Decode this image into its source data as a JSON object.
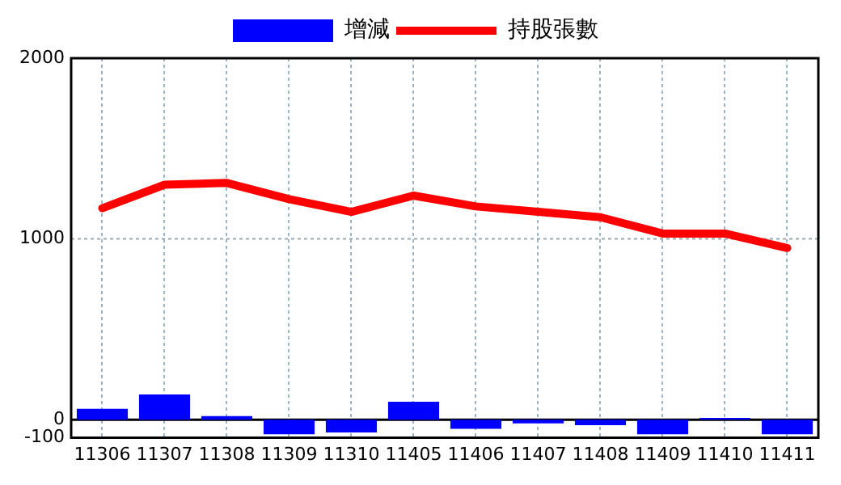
{
  "chart_data": {
    "type": "bar",
    "categories": [
      "11306",
      "11307",
      "11308",
      "11309",
      "11310",
      "11405",
      "11406",
      "11407",
      "11408",
      "11409",
      "11410",
      "11411"
    ],
    "series": [
      {
        "name": "增減",
        "color": "#0000ff",
        "values": [
          60,
          140,
          20,
          -80,
          -70,
          100,
          -50,
          -20,
          -30,
          -80,
          10,
          -80
        ]
      },
      {
        "name": "持股張數",
        "type": "line",
        "color": "#ff0000",
        "values": [
          1170,
          1300,
          1310,
          1220,
          1150,
          1240,
          1180,
          1150,
          1120,
          1030,
          1030,
          950
        ]
      }
    ],
    "ylim": [
      -100,
      2000
    ],
    "yticks": [
      -100,
      0,
      1000,
      2000
    ],
    "ref_lines": [
      {
        "axis": "y",
        "value": 0,
        "color": "#000000"
      },
      {
        "axis": "y",
        "value": 1000,
        "color": "#9aa8b0",
        "line_style": "dotted"
      }
    ],
    "grid": "x",
    "legend": "top",
    "line_style": "solid",
    "marker": "none"
  }
}
